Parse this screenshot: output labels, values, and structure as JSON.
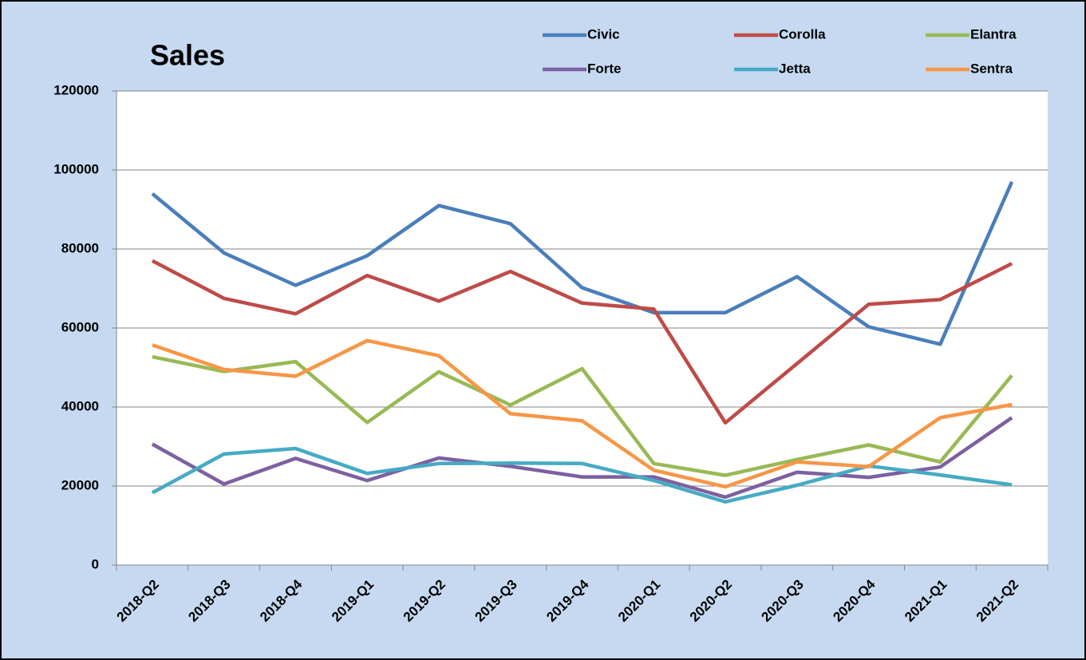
{
  "chart_data": {
    "type": "line",
    "title": "Sales",
    "categories": [
      "2018-Q2",
      "2018-Q3",
      "2018-Q4",
      "2019-Q1",
      "2019-Q2",
      "2019-Q3",
      "2019-Q4",
      "2020-Q1",
      "2020-Q2",
      "2020-Q3",
      "2020-Q4",
      "2021-Q1",
      "2021-Q2"
    ],
    "series": [
      {
        "name": "Civic",
        "color": "#4a7ebb",
        "values": [
          94000,
          79000,
          70800,
          78300,
          91000,
          86400,
          70200,
          63900,
          63900,
          73000,
          60300,
          55900,
          97000
        ]
      },
      {
        "name": "Corolla",
        "color": "#be4b48",
        "values": [
          77000,
          67500,
          63600,
          73300,
          66800,
          74300,
          66300,
          64800,
          36000,
          51000,
          66000,
          67200,
          76300
        ]
      },
      {
        "name": "Elantra",
        "color": "#98b954",
        "values": [
          52700,
          49000,
          51500,
          36100,
          48900,
          40500,
          49700,
          25700,
          22700,
          26700,
          30400,
          26100,
          48000
        ]
      },
      {
        "name": "Forte",
        "color": "#7d60a0",
        "values": [
          30600,
          20500,
          27000,
          21400,
          27100,
          25000,
          22300,
          22300,
          17200,
          23500,
          22200,
          24800,
          37300
        ]
      },
      {
        "name": "Jetta",
        "color": "#46aac5",
        "values": [
          18300,
          28100,
          29500,
          23200,
          25700,
          25800,
          25700,
          21400,
          16000,
          20200,
          25100,
          22800,
          20300
        ]
      },
      {
        "name": "Sentra",
        "color": "#f79646",
        "values": [
          55700,
          49500,
          47800,
          56800,
          53000,
          38300,
          36500,
          24000,
          19800,
          26100,
          24900,
          37300,
          40600
        ]
      }
    ],
    "ylim": [
      0,
      120000
    ],
    "yticks": [
      0,
      20000,
      40000,
      60000,
      80000,
      100000,
      120000
    ],
    "grid": true
  }
}
